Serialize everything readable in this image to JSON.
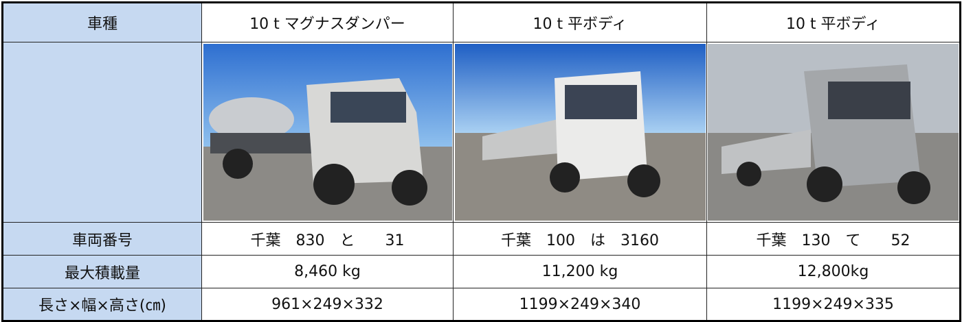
{
  "table": {
    "header": [
      "車種",
      "10 t マグナスダンパー",
      "10 t 平ボディ",
      "10 t 平ボディ"
    ],
    "rows": [
      [
        "車両番号",
        "千葉　830　と　　31",
        "千葉　100　は　3160",
        "千葉　130　て　　52"
      ],
      [
        "最大積載量",
        "8,460 kg",
        "11,200 kg",
        "12,800kg"
      ],
      [
        "長さ×幅×高さ(㎝)",
        "961×249×332",
        "1199×249×340",
        "1199×249×335"
      ]
    ]
  }
}
